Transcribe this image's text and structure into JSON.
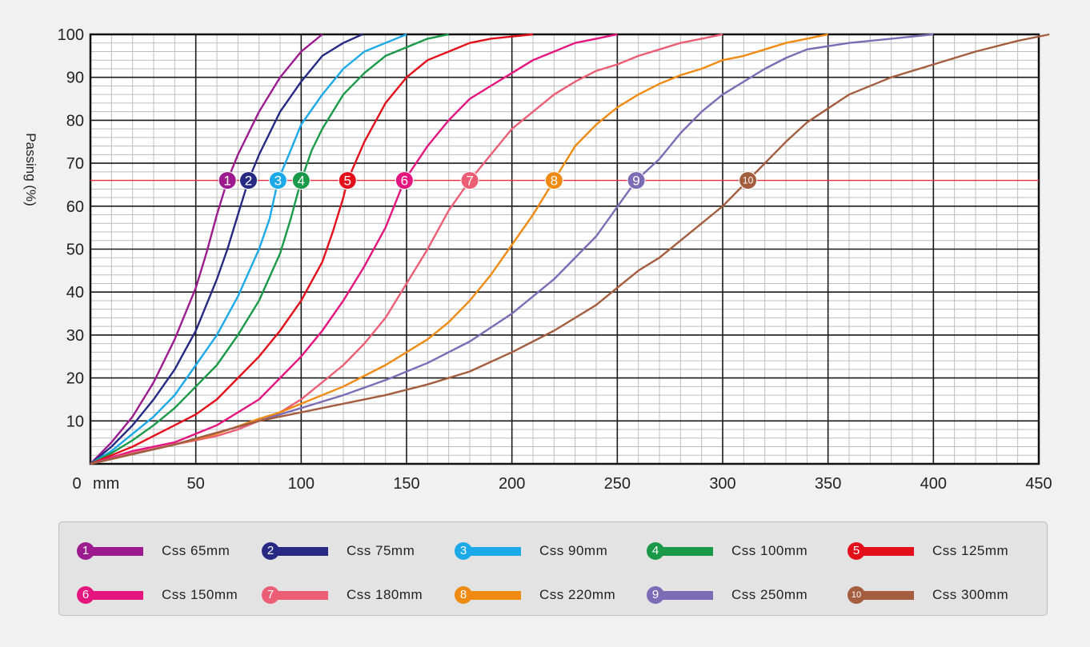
{
  "chart_data": {
    "type": "line",
    "xlabel": "mm",
    "ylabel": "Passing (%)",
    "xlim": [
      0,
      450
    ],
    "ylim": [
      0,
      100
    ],
    "x_ticks": [
      "0",
      "50",
      "100",
      "150",
      "200",
      "250",
      "300",
      "350",
      "400",
      "450"
    ],
    "y_ticks": [
      "10",
      "20",
      "30",
      "40",
      "50",
      "60",
      "70",
      "80",
      "90",
      "100"
    ],
    "grid": true,
    "reference_line": {
      "y": 66,
      "color": "#e8303f"
    },
    "series": [
      {
        "badge": "1",
        "name": "Css 65mm",
        "color": "#9c1b8e",
        "marker_x": 65,
        "points": [
          [
            0,
            0
          ],
          [
            10,
            5
          ],
          [
            20,
            11
          ],
          [
            30,
            19
          ],
          [
            40,
            29
          ],
          [
            50,
            41
          ],
          [
            55,
            49
          ],
          [
            60,
            58
          ],
          [
            65,
            66
          ],
          [
            70,
            72
          ],
          [
            80,
            82
          ],
          [
            90,
            90
          ],
          [
            100,
            96
          ],
          [
            110,
            100
          ]
        ]
      },
      {
        "badge": "2",
        "name": "Css 75mm",
        "color": "#262a82",
        "marker_x": 75,
        "points": [
          [
            0,
            0
          ],
          [
            10,
            4
          ],
          [
            20,
            9
          ],
          [
            30,
            15
          ],
          [
            40,
            22
          ],
          [
            50,
            31
          ],
          [
            60,
            43
          ],
          [
            65,
            50
          ],
          [
            70,
            58
          ],
          [
            75,
            66
          ],
          [
            80,
            72
          ],
          [
            90,
            82
          ],
          [
            100,
            89
          ],
          [
            110,
            95
          ],
          [
            120,
            98
          ],
          [
            129,
            100
          ]
        ]
      },
      {
        "badge": "3",
        "name": "Css 90mm",
        "color": "#1ba9e8",
        "marker_x": 89,
        "points": [
          [
            0,
            0
          ],
          [
            10,
            3
          ],
          [
            20,
            7
          ],
          [
            30,
            11
          ],
          [
            40,
            16
          ],
          [
            50,
            23
          ],
          [
            60,
            30
          ],
          [
            70,
            39
          ],
          [
            80,
            50
          ],
          [
            85,
            57
          ],
          [
            89,
            66
          ],
          [
            95,
            73
          ],
          [
            100,
            79
          ],
          [
            110,
            86
          ],
          [
            120,
            92
          ],
          [
            130,
            96
          ],
          [
            140,
            98
          ],
          [
            150,
            100
          ]
        ]
      },
      {
        "badge": "4",
        "name": "Css 100mm",
        "color": "#1a9a49",
        "marker_x": 100,
        "points": [
          [
            0,
            0
          ],
          [
            10,
            2.5
          ],
          [
            20,
            5.5
          ],
          [
            30,
            9
          ],
          [
            40,
            13
          ],
          [
            50,
            18
          ],
          [
            60,
            23
          ],
          [
            70,
            30
          ],
          [
            80,
            38
          ],
          [
            90,
            49
          ],
          [
            95,
            57
          ],
          [
            100,
            66
          ],
          [
            105,
            73
          ],
          [
            110,
            78
          ],
          [
            120,
            86
          ],
          [
            130,
            91
          ],
          [
            140,
            95
          ],
          [
            150,
            97
          ],
          [
            160,
            99
          ],
          [
            170,
            100
          ]
        ]
      },
      {
        "badge": "5",
        "name": "Css 125mm",
        "color": "#e30f1a",
        "marker_x": 122,
        "points": [
          [
            0,
            0
          ],
          [
            10,
            2
          ],
          [
            20,
            4
          ],
          [
            30,
            6.5
          ],
          [
            40,
            9
          ],
          [
            50,
            11.5
          ],
          [
            60,
            15
          ],
          [
            70,
            20
          ],
          [
            80,
            25
          ],
          [
            90,
            31
          ],
          [
            100,
            38
          ],
          [
            110,
            47
          ],
          [
            115,
            54
          ],
          [
            120,
            62
          ],
          [
            122,
            66
          ],
          [
            130,
            75
          ],
          [
            140,
            84
          ],
          [
            150,
            90
          ],
          [
            160,
            94
          ],
          [
            170,
            96
          ],
          [
            180,
            98
          ],
          [
            190,
            99
          ],
          [
            210,
            100
          ]
        ]
      },
      {
        "badge": "6",
        "name": "Css 150mm",
        "color": "#e5157f",
        "marker_x": 149,
        "points": [
          [
            0,
            0
          ],
          [
            20,
            3
          ],
          [
            40,
            5
          ],
          [
            50,
            7
          ],
          [
            60,
            9
          ],
          [
            70,
            12
          ],
          [
            80,
            15
          ],
          [
            90,
            20
          ],
          [
            100,
            25
          ],
          [
            110,
            31
          ],
          [
            120,
            38
          ],
          [
            130,
            46
          ],
          [
            140,
            55
          ],
          [
            149,
            66
          ],
          [
            160,
            74
          ],
          [
            170,
            80
          ],
          [
            180,
            85
          ],
          [
            190,
            88
          ],
          [
            200,
            91
          ],
          [
            210,
            94
          ],
          [
            220,
            96
          ],
          [
            230,
            98
          ],
          [
            240,
            99
          ],
          [
            250,
            100
          ]
        ]
      },
      {
        "badge": "7",
        "name": "Css 180mm",
        "color": "#ec5e74",
        "marker_x": 180,
        "points": [
          [
            0,
            0
          ],
          [
            20,
            2.5
          ],
          [
            40,
            4.5
          ],
          [
            60,
            6.5
          ],
          [
            70,
            8
          ],
          [
            80,
            10
          ],
          [
            90,
            12
          ],
          [
            100,
            15
          ],
          [
            110,
            19
          ],
          [
            120,
            23
          ],
          [
            130,
            28
          ],
          [
            140,
            34
          ],
          [
            150,
            42
          ],
          [
            160,
            50
          ],
          [
            170,
            59
          ],
          [
            180,
            66
          ],
          [
            190,
            72
          ],
          [
            200,
            78
          ],
          [
            210,
            82
          ],
          [
            220,
            86
          ],
          [
            230,
            89
          ],
          [
            240,
            91.5
          ],
          [
            250,
            93
          ],
          [
            260,
            95
          ],
          [
            270,
            96.5
          ],
          [
            280,
            98
          ],
          [
            290,
            99
          ],
          [
            300,
            100
          ]
        ]
      },
      {
        "badge": "8",
        "name": "Css  220mm",
        "color": "#ef8a13",
        "marker_x": 220,
        "points": [
          [
            0,
            0
          ],
          [
            40,
            4.5
          ],
          [
            60,
            7
          ],
          [
            80,
            10.5
          ],
          [
            90,
            12
          ],
          [
            100,
            14
          ],
          [
            120,
            18
          ],
          [
            140,
            23
          ],
          [
            160,
            29
          ],
          [
            170,
            33
          ],
          [
            180,
            38
          ],
          [
            190,
            44
          ],
          [
            200,
            51
          ],
          [
            210,
            58
          ],
          [
            220,
            66
          ],
          [
            230,
            74
          ],
          [
            240,
            79
          ],
          [
            250,
            83
          ],
          [
            260,
            86
          ],
          [
            270,
            88.5
          ],
          [
            280,
            90.5
          ],
          [
            290,
            92
          ],
          [
            300,
            94
          ],
          [
            310,
            95
          ],
          [
            320,
            96.5
          ],
          [
            330,
            98
          ],
          [
            340,
            99
          ],
          [
            350,
            100
          ]
        ]
      },
      {
        "badge": "9",
        "name": "Css 250mm",
        "color": "#7a6cb5",
        "marker_x": 259,
        "points": [
          [
            0,
            0
          ],
          [
            40,
            4.5
          ],
          [
            80,
            10
          ],
          [
            90,
            11.5
          ],
          [
            100,
            13
          ],
          [
            120,
            16
          ],
          [
            140,
            19.5
          ],
          [
            160,
            23.5
          ],
          [
            180,
            28.5
          ],
          [
            200,
            35
          ],
          [
            220,
            43
          ],
          [
            240,
            53
          ],
          [
            259,
            66
          ],
          [
            270,
            71
          ],
          [
            280,
            77
          ],
          [
            290,
            82
          ],
          [
            300,
            86
          ],
          [
            310,
            89
          ],
          [
            320,
            92
          ],
          [
            330,
            94.5
          ],
          [
            340,
            96.5
          ],
          [
            360,
            98
          ],
          [
            380,
            99
          ],
          [
            400,
            100
          ]
        ]
      },
      {
        "badge": "10",
        "name": "Css 300mm",
        "color": "#a45e3f",
        "marker_x": 312,
        "points": [
          [
            0,
            0
          ],
          [
            40,
            4.5
          ],
          [
            80,
            10
          ],
          [
            90,
            11
          ],
          [
            100,
            12
          ],
          [
            120,
            14
          ],
          [
            140,
            16
          ],
          [
            160,
            18.5
          ],
          [
            180,
            21.5
          ],
          [
            200,
            26
          ],
          [
            220,
            31
          ],
          [
            240,
            37
          ],
          [
            250,
            41
          ],
          [
            260,
            45
          ],
          [
            270,
            48
          ],
          [
            280,
            52
          ],
          [
            290,
            56
          ],
          [
            300,
            60
          ],
          [
            312,
            66
          ],
          [
            320,
            70
          ],
          [
            330,
            75
          ],
          [
            340,
            79.5
          ],
          [
            360,
            86
          ],
          [
            380,
            90
          ],
          [
            400,
            93
          ],
          [
            420,
            96
          ],
          [
            440,
            98.5
          ],
          [
            455,
            100
          ]
        ]
      }
    ]
  }
}
